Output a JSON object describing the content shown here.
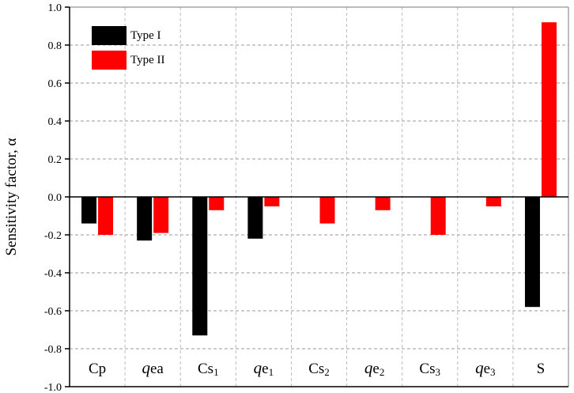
{
  "chart_data": {
    "type": "bar",
    "title": "",
    "xlabel": "",
    "ylabel": "Sensitivity factor, α",
    "ylim": [
      -1.0,
      1.0
    ],
    "yticks": [
      "1.0",
      "0.8",
      "0.6",
      "0.4",
      "0.2",
      "0.0",
      "-0.2",
      "-0.4",
      "-0.6",
      "-0.8",
      "-1.0"
    ],
    "ytick_values": [
      1.0,
      0.8,
      0.6,
      0.4,
      0.2,
      0.0,
      -0.2,
      -0.4,
      -0.6,
      -0.8,
      -1.0
    ],
    "grid": true,
    "legend_position": "top-left",
    "categories": [
      {
        "prefix": "Cp",
        "italic": "",
        "main": "",
        "sub": ""
      },
      {
        "prefix": "",
        "italic": "q",
        "main": "ea",
        "sub": ""
      },
      {
        "prefix": "Cs",
        "italic": "",
        "main": "",
        "sub": "1"
      },
      {
        "prefix": "",
        "italic": "q",
        "main": "e",
        "sub": "1"
      },
      {
        "prefix": "Cs",
        "italic": "",
        "main": "",
        "sub": "2"
      },
      {
        "prefix": "",
        "italic": "q",
        "main": "e",
        "sub": "2"
      },
      {
        "prefix": "Cs",
        "italic": "",
        "main": "",
        "sub": "3"
      },
      {
        "prefix": "",
        "italic": "q",
        "main": "e",
        "sub": "3"
      },
      {
        "prefix": "S",
        "italic": "",
        "main": "",
        "sub": ""
      }
    ],
    "series": [
      {
        "name": "Type I",
        "color": "#000000",
        "values": [
          -0.14,
          -0.23,
          -0.73,
          -0.22,
          0.0,
          0.0,
          0.0,
          0.0,
          -0.58
        ]
      },
      {
        "name": "Type II",
        "color": "#ff0000",
        "values": [
          -0.2,
          -0.19,
          -0.07,
          -0.05,
          -0.14,
          -0.07,
          -0.2,
          -0.05,
          0.92
        ]
      }
    ]
  }
}
